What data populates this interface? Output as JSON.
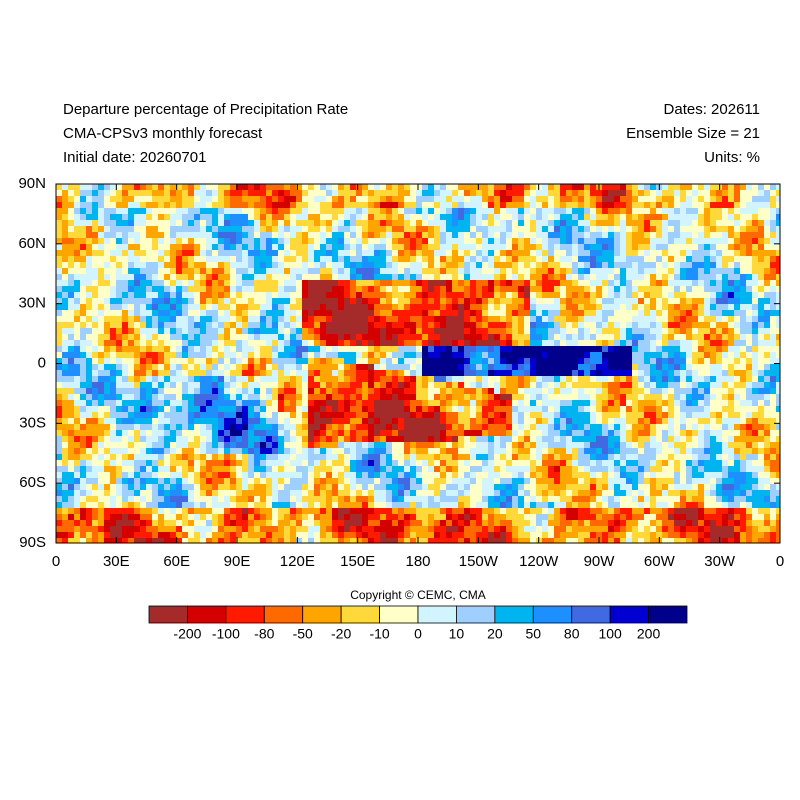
{
  "header": {
    "left": [
      "Departure percentage of Precipitation Rate",
      "CMA-CPSv3 monthly forecast",
      "Initial date: 20260701"
    ],
    "right": [
      "Dates: 202611",
      "Ensemble Size = 21",
      "Units: %"
    ]
  },
  "map": {
    "lat_labels": [
      "90N",
      "60N",
      "30N",
      "0",
      "30S",
      "60S",
      "90S"
    ],
    "lon_labels": [
      "0",
      "30E",
      "60E",
      "90E",
      "120E",
      "150E",
      "180",
      "150W",
      "120W",
      "90W",
      "60W",
      "30W",
      "0"
    ]
  },
  "copyright": "Copyright © CEMC, CMA",
  "colorbar": {
    "colors": [
      "#a52a2a",
      "#d40000",
      "#ff1a00",
      "#ff6a00",
      "#ffa500",
      "#ffd83a",
      "#ffffc8",
      "#d2f4ff",
      "#9fcfff",
      "#00b4f0",
      "#1e8fff",
      "#4169e1",
      "#0000d0",
      "#00008b"
    ],
    "labels": [
      -200,
      -100,
      -80,
      -50,
      -20,
      -10,
      0,
      10,
      20,
      50,
      80,
      100,
      200
    ]
  }
}
